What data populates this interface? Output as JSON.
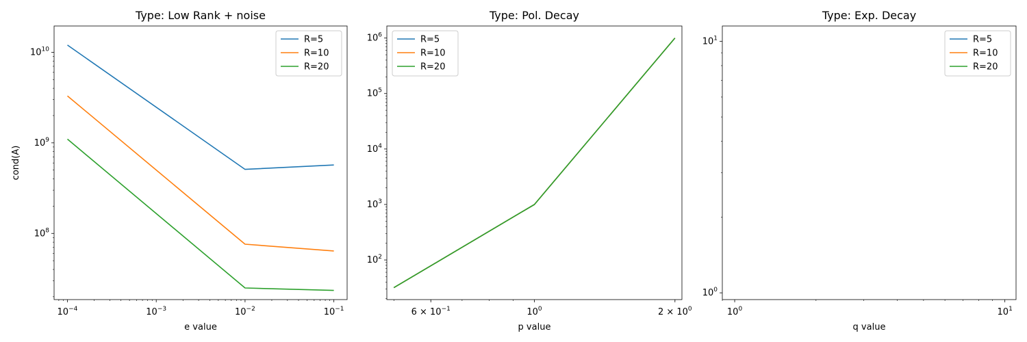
{
  "colors": {
    "R=5": "#1f77b4",
    "R=10": "#ff7f0e",
    "R=20": "#2ca02c",
    "axes": "#000000",
    "legend_border": "#cccccc"
  },
  "chart_data": [
    {
      "type": "line",
      "title": "Type: Low Rank + noise",
      "xlabel": "e value",
      "ylabel": "cond(A)",
      "xscale": "log",
      "yscale": "log",
      "xlim": [
        7.08e-05,
        0.141
      ],
      "ylim": [
        18600000,
        19500000000
      ],
      "x_ticks": [
        {
          "value": 0.0001,
          "base": "10",
          "exp": "−4"
        },
        {
          "value": 0.001,
          "base": "10",
          "exp": "−3"
        },
        {
          "value": 0.01,
          "base": "10",
          "exp": "−2"
        },
        {
          "value": 0.1,
          "base": "10",
          "exp": "−1"
        }
      ],
      "y_ticks": [
        {
          "value": 100000000,
          "base": "10",
          "exp": "8"
        },
        {
          "value": 1000000000,
          "base": "10",
          "exp": "9"
        },
        {
          "value": 10000000000,
          "base": "10",
          "exp": "10"
        }
      ],
      "legend": "upper right",
      "series": [
        {
          "name": "R=5",
          "x": [
            0.0001,
            0.01,
            0.1
          ],
          "y": [
            12000000000,
            510000000,
            570000000
          ]
        },
        {
          "name": "R=10",
          "x": [
            0.0001,
            0.01,
            0.1
          ],
          "y": [
            3300000000,
            76000000,
            64000000
          ]
        },
        {
          "name": "R=20",
          "x": [
            0.0001,
            0.01,
            0.1
          ],
          "y": [
            1100000000,
            25000000,
            23500000
          ]
        }
      ]
    },
    {
      "type": "line",
      "title": "Type: Pol. Decay",
      "xlabel": "p value",
      "ylabel": "",
      "xscale": "log",
      "yscale": "log",
      "xlim": [
        0.483,
        2.07
      ],
      "ylim": [
        19.3,
        1650000
      ],
      "x_ticks": [
        {
          "value": 0.6,
          "base": "6 × 10",
          "exp": "−1"
        },
        {
          "value": 1,
          "base": "10",
          "exp": "0"
        },
        {
          "value": 2,
          "base": "2 × 10",
          "exp": "0"
        }
      ],
      "y_ticks": [
        {
          "value": 100,
          "base": "10",
          "exp": "2"
        },
        {
          "value": 1000,
          "base": "10",
          "exp": "3"
        },
        {
          "value": 10000,
          "base": "10",
          "exp": "4"
        },
        {
          "value": 100000,
          "base": "10",
          "exp": "5"
        },
        {
          "value": 1000000,
          "base": "10",
          "exp": "6"
        }
      ],
      "legend": "upper left",
      "series": [
        {
          "name": "R=5",
          "x": [
            0.5,
            1,
            2
          ],
          "y": [
            31.6,
            1000,
            1000000
          ]
        },
        {
          "name": "R=10",
          "x": [
            0.5,
            1,
            2
          ],
          "y": [
            31.6,
            1000,
            1000000
          ]
        },
        {
          "name": "R=20",
          "x": [
            0.5,
            1,
            2
          ],
          "y": [
            31.6,
            1000,
            1000000
          ]
        }
      ]
    },
    {
      "type": "line",
      "title": "Type: Exp. Decay",
      "xlabel": "q value",
      "ylabel": "",
      "xscale": "log",
      "yscale": "log",
      "xlim": [
        0.9,
        11
      ],
      "ylim": [
        0.94,
        11.5
      ],
      "x_ticks": [
        {
          "value": 1,
          "base": "10",
          "exp": "0"
        },
        {
          "value": 10,
          "base": "10",
          "exp": "1"
        }
      ],
      "y_ticks": [
        {
          "value": 1,
          "base": "10",
          "exp": "0"
        },
        {
          "value": 10,
          "base": "10",
          "exp": "1"
        }
      ],
      "legend": "upper right",
      "series": [
        {
          "name": "R=5",
          "x": [],
          "y": []
        },
        {
          "name": "R=10",
          "x": [],
          "y": []
        },
        {
          "name": "R=20",
          "x": [],
          "y": []
        }
      ]
    }
  ]
}
